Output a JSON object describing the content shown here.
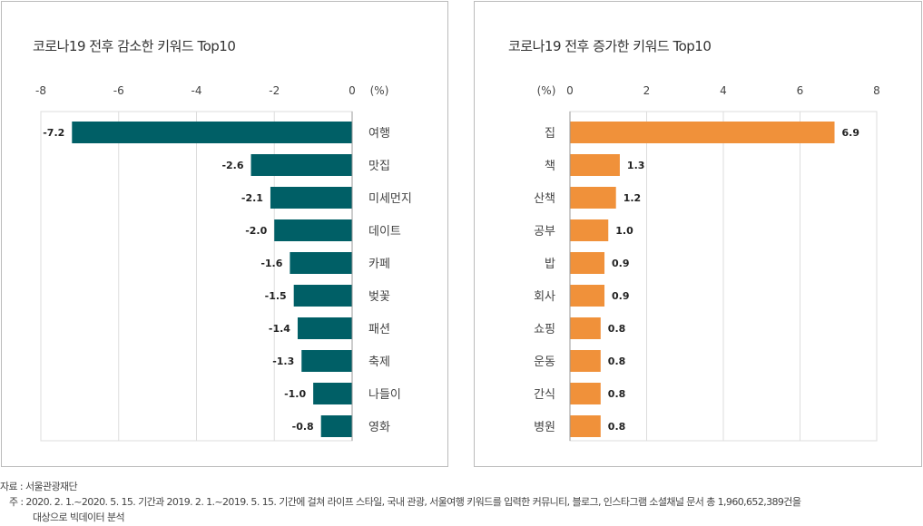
{
  "chart_data": [
    {
      "type": "bar",
      "orientation": "horizontal",
      "title": "코로나19 전후 감소한 키워드 Top10",
      "unit": "(%)",
      "xlim": [
        -8,
        0
      ],
      "ticks": [
        -8,
        -6,
        -4,
        -2,
        0
      ],
      "categories": [
        "여행",
        "맛집",
        "미세먼지",
        "데이트",
        "카페",
        "벚꽃",
        "패션",
        "축제",
        "나들이",
        "영화"
      ],
      "values": [
        -7.2,
        -2.6,
        -2.1,
        -2.0,
        -1.6,
        -1.5,
        -1.4,
        -1.3,
        -1.0,
        -0.8
      ],
      "labels": [
        "-7.2",
        "-2.6",
        "-2.1",
        "-2.0",
        "-1.6",
        "-1.5",
        "-1.4",
        "-1.3",
        "-1.0",
        "-0.8"
      ],
      "color": "#005f66"
    },
    {
      "type": "bar",
      "orientation": "horizontal",
      "title": "코로나19 전후 증가한 키워드 Top10",
      "unit": "(%)",
      "xlim": [
        0,
        8
      ],
      "ticks": [
        0,
        2,
        4,
        6,
        8
      ],
      "categories": [
        "집",
        "책",
        "산책",
        "공부",
        "밥",
        "회사",
        "쇼핑",
        "운동",
        "간식",
        "병원"
      ],
      "values": [
        6.9,
        1.3,
        1.2,
        1.0,
        0.9,
        0.9,
        0.8,
        0.8,
        0.8,
        0.8
      ],
      "labels": [
        "6.9",
        "1.3",
        "1.2",
        "1.0",
        "0.9",
        "0.9",
        "0.8",
        "0.8",
        "0.8",
        "0.8"
      ],
      "color": "#f0913a"
    }
  ],
  "footer": {
    "source": "자료 : 서울관광재단",
    "note1": "주 : 2020. 2. 1.~2020. 5. 15. 기간과 2019. 2. 1.~2019. 5. 15. 기간에 걸쳐 라이프 스타일, 국내 관광, 서울여행 키워드를 입력한 커뮤니티, 블로그, 인스타그램 소셜채널 문서 총 1,960,652,389건을",
    "note2": "대상으로 빅데이터 분석"
  }
}
